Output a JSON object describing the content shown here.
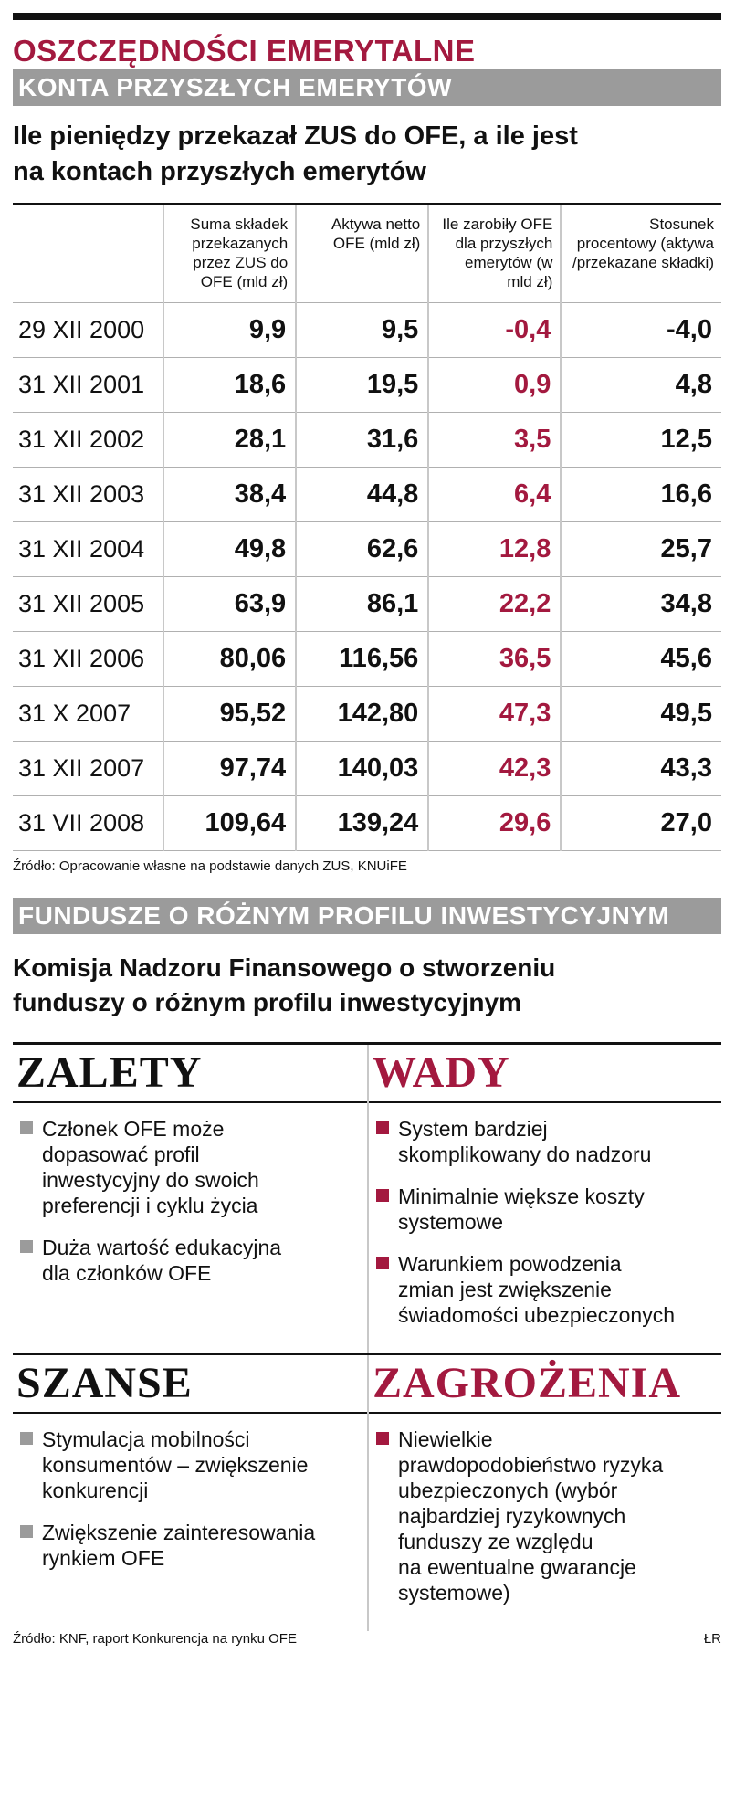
{
  "header": {
    "main_title": "OSZCZĘDNOŚCI EMERYTALNE",
    "section1": "KONTA PRZYSZŁYCH EMERYTÓW",
    "subtitle_line1": "Ile pieniędzy przekazał ZUS do OFE, a ile jest",
    "subtitle_line2": "na kontach przyszłych emerytów"
  },
  "table": {
    "columns": [
      "Suma składek przekazanych przez ZUS do OFE (mld zł)",
      "Aktywa netto OFE (mld zł)",
      "Ile zarobiły OFE dla przyszłych emerytów (w mld zł)",
      "Stosunek procentowy (aktywa /przekazane składki)"
    ],
    "rows": [
      {
        "date": "29 XII 2000",
        "suma": "9,9",
        "aktywa": "9,5",
        "zarobek": "-0,4",
        "stosunek": "-4,0"
      },
      {
        "date": "31 XII 2001",
        "suma": "18,6",
        "aktywa": "19,5",
        "zarobek": "0,9",
        "stosunek": "4,8"
      },
      {
        "date": "31 XII 2002",
        "suma": "28,1",
        "aktywa": "31,6",
        "zarobek": "3,5",
        "stosunek": "12,5"
      },
      {
        "date": "31 XII 2003",
        "suma": "38,4",
        "aktywa": "44,8",
        "zarobek": "6,4",
        "stosunek": "16,6"
      },
      {
        "date": "31 XII 2004",
        "suma": "49,8",
        "aktywa": "62,6",
        "zarobek": "12,8",
        "stosunek": "25,7"
      },
      {
        "date": "31 XII 2005",
        "suma": "63,9",
        "aktywa": "86,1",
        "zarobek": "22,2",
        "stosunek": "34,8"
      },
      {
        "date": "31 XII 2006",
        "suma": "80,06",
        "aktywa": "116,56",
        "zarobek": "36,5",
        "stosunek": "45,6"
      },
      {
        "date": "31 X 2007",
        "suma": "95,52",
        "aktywa": "142,80",
        "zarobek": "47,3",
        "stosunek": "49,5"
      },
      {
        "date": "31 XII 2007",
        "suma": "97,74",
        "aktywa": "140,03",
        "zarobek": "42,3",
        "stosunek": "43,3"
      },
      {
        "date": "31 VII 2008",
        "suma": "109,64",
        "aktywa": "139,24",
        "zarobek": "29,6",
        "stosunek": "27,0"
      }
    ],
    "source": "Źródło: Opracowanie własne na podstawie danych ZUS, KNUiFE"
  },
  "section2": {
    "bar": "FUNDUSZE O RÓŻNYM PROFILU INWESTYCYJNYM",
    "subtitle_line1": "Komisja Nadzoru Finansowego o stworzeniu",
    "subtitle_line2": "funduszy o różnym profilu inwestycyjnym"
  },
  "swot": {
    "zalety": {
      "title": "ZALETY",
      "items": [
        [
          "Członek OFE może",
          "dopasować profil",
          "inwestycyjny do swoich",
          "preferencji i cyklu życia"
        ],
        [
          "Duża wartość edukacyjna",
          "dla członków OFE"
        ]
      ]
    },
    "wady": {
      "title": "WADY",
      "items": [
        [
          "System bardziej",
          "skomplikowany do nadzoru"
        ],
        [
          "Minimalnie większe koszty",
          "systemowe"
        ],
        [
          "Warunkiem powodzenia",
          "zmian jest zwiększenie",
          "świadomości ubezpieczonych"
        ]
      ]
    },
    "szanse": {
      "title": "SZANSE",
      "items": [
        [
          "Stymulacja mobilności",
          "konsumentów – zwiększenie",
          "konkurencji"
        ],
        [
          "Zwiększenie zainteresowania",
          "rynkiem OFE"
        ]
      ]
    },
    "zagrozenia": {
      "title": "ZAGROŻENIA",
      "items": [
        [
          "Niewielkie",
          "prawdopodobieństwo ryzyka",
          "ubezpieczonych (wybór",
          "najbardziej ryzykownych",
          "funduszy ze względu",
          "na ewentualne gwarancje",
          "systemowe)"
        ]
      ]
    }
  },
  "footer": {
    "source": "Źródło: KNF, raport Konkurencja na rynku OFE",
    "author": "ŁR"
  },
  "colors": {
    "accent": "#a3193f",
    "bar_grey": "#9b9b9b"
  }
}
